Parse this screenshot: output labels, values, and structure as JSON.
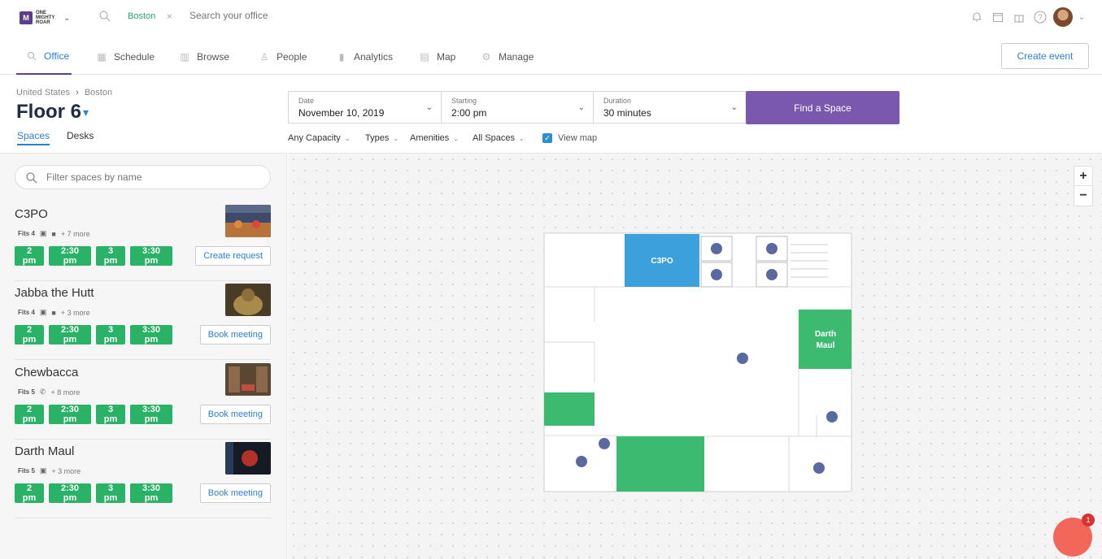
{
  "top": {
    "logo_lines": [
      "ONE",
      "MIGHTY",
      "ROAR"
    ],
    "location_chip": "Boston",
    "search_placeholder": "Search your office"
  },
  "nav": {
    "items": [
      "Office",
      "Schedule",
      "Browse",
      "People",
      "Analytics",
      "Map",
      "Manage"
    ],
    "active": "Office",
    "create_event": "Create event"
  },
  "breadcrumb": {
    "country": "United States",
    "city": "Boston"
  },
  "floor": {
    "title": "Floor 6"
  },
  "tabs": {
    "spaces": "Spaces",
    "desks": "Desks"
  },
  "search_filters": {
    "date_label": "Date",
    "date_value": "November 10, 2019",
    "start_label": "Starting",
    "start_value": "2:00 pm",
    "duration_label": "Duration",
    "duration_value": "30 minutes",
    "find_button": "Find a Space",
    "capacity": "Any Capacity",
    "types": "Types",
    "amenities": "Amenities",
    "all_spaces": "All Spaces",
    "view_map": "View map",
    "view_map_checked": true
  },
  "space_filter_placeholder": "Filter spaces by name",
  "spaces": [
    {
      "name": "C3PO",
      "fits": "Fits 4",
      "more": "+ 7 more",
      "slots": [
        "2 pm",
        "2:30 pm",
        "3 pm",
        "3:30 pm"
      ],
      "action": "Create request"
    },
    {
      "name": "Jabba the Hutt",
      "fits": "Fits 4",
      "more": "+ 3 more",
      "slots": [
        "2 pm",
        "2:30 pm",
        "3 pm",
        "3:30 pm"
      ],
      "action": "Book meeting"
    },
    {
      "name": "Chewbacca",
      "fits": "Fits 5",
      "more": "+ 8 more",
      "slots": [
        "2 pm",
        "2:30 pm",
        "3 pm",
        "3:30 pm"
      ],
      "action": "Book meeting"
    },
    {
      "name": "Darth Maul",
      "fits": "Fits 5",
      "more": "+ 3 more",
      "slots": [
        "2 pm",
        "2:30 pm",
        "3 pm",
        "3:30 pm"
      ],
      "action": "Book meeting"
    }
  ],
  "map": {
    "rooms": {
      "c3po": "C3PO",
      "darth_maul_line1": "Darth",
      "darth_maul_line2": "Maul"
    },
    "zoom_in": "+",
    "zoom_out": "−"
  },
  "chat": {
    "badge": "1"
  },
  "colors": {
    "accent": "#2c7fd6",
    "brand": "#7a58ad",
    "available": "#2ab266",
    "room_selected": "#3ba0dc"
  }
}
